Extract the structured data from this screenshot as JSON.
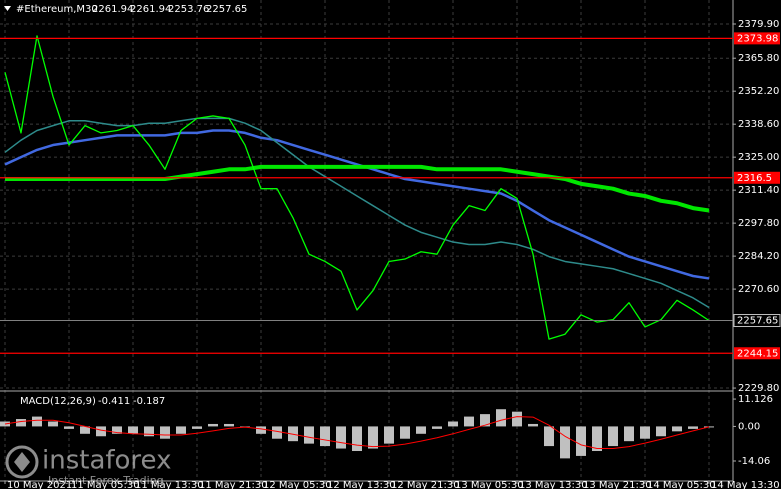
{
  "header": {
    "open": 2261.94,
    "high": 2261.94,
    "low": 2253.76
  },
  "watermark": {
    "brand": "instaforex",
    "tagline": "Instant Forex Trading"
  },
  "chart_data": [
    {
      "type": "line",
      "title": "#Ethereum,M30",
      "categories": [
        "10 May 2021",
        null,
        null,
        null,
        "11 May 05:30",
        null,
        null,
        null,
        "11 May 13:30",
        null,
        null,
        null,
        "11 May 21:30",
        null,
        null,
        null,
        "12 May 05:30",
        null,
        null,
        null,
        "12 May 13:30",
        null,
        null,
        null,
        "12 May 21:30",
        null,
        null,
        null,
        "13 May 05:30",
        null,
        null,
        null,
        "13 May 13:30",
        null,
        null,
        null,
        "13 May 21:30",
        null,
        null,
        null,
        "14 May 05:30",
        null,
        null,
        null,
        "14 May 13:30"
      ],
      "series": [
        {
          "color": "#4169e1",
          "width": 2.5,
          "values": [
            2322,
            2325,
            2328,
            2330,
            2331,
            2332,
            2333,
            2334,
            2334,
            2334,
            2334,
            2335,
            2335,
            2336,
            2336,
            2335,
            2333,
            2332,
            2330,
            2328,
            2326,
            2324,
            2322,
            2320,
            2318,
            2316,
            2315,
            2314,
            2313,
            2312,
            2311,
            2310,
            2307,
            2303,
            2299,
            2296,
            2293,
            2290,
            2287,
            2284,
            2282,
            2280,
            2278,
            2276,
            2275
          ]
        },
        {
          "color": "#2e8b8b",
          "width": 1.5,
          "values": [
            2327,
            2332,
            2336,
            2338,
            2340,
            2340,
            2339,
            2338,
            2338,
            2339,
            2339,
            2340,
            2341,
            2341,
            2341,
            2339,
            2336,
            2331,
            2326,
            2321,
            2317,
            2313,
            2309,
            2305,
            2301,
            2297,
            2294,
            2292,
            2290,
            2289,
            2289,
            2290,
            2289,
            2287,
            2284,
            2282,
            2281,
            2280,
            2279,
            2277,
            2275,
            2273,
            2270,
            2267,
            2263
          ]
        },
        {
          "color": "#00e600",
          "width": 4,
          "values": [
            2316,
            2316,
            2316,
            2316,
            2316,
            2316,
            2316,
            2316,
            2316,
            2316,
            2316,
            2317,
            2318,
            2319,
            2320,
            2320,
            2321,
            2321,
            2321,
            2321,
            2321,
            2321,
            2321,
            2321,
            2321,
            2321,
            2321,
            2320,
            2320,
            2320,
            2320,
            2320,
            2319,
            2318,
            2317,
            2316,
            2314,
            2313,
            2312,
            2310,
            2309,
            2307,
            2306,
            2304,
            2303
          ]
        },
        {
          "color": "#00ff00",
          "width": 1.3,
          "values": [
            2360,
            2335,
            2375,
            2350,
            2330,
            2338,
            2335,
            2336,
            2338,
            2330,
            2320,
            2336,
            2341,
            2342,
            2341,
            2330,
            2312,
            2312,
            2300,
            2285,
            2282,
            2278,
            2262,
            2270,
            2282,
            2283,
            2286,
            2285,
            2297,
            2305,
            2303,
            2312,
            2308,
            2285,
            2250,
            2252,
            2260,
            2257,
            2258,
            2265,
            2255,
            2258,
            2266,
            2262,
            2257.65
          ]
        }
      ],
      "levels": [
        {
          "value": 2373.98,
          "color": "#ff0000"
        },
        {
          "value": 2316.5,
          "color": "#ff0000"
        },
        {
          "value": 2244.15,
          "color": "#ff0000"
        }
      ],
      "ylim": [
        2229.0,
        2389.8
      ],
      "yticks": [
        {
          "value": 2379.9,
          "label": "2379.90"
        },
        {
          "value": 2365.8,
          "label": "2365.80"
        },
        {
          "value": 2352.2,
          "label": "2352.20"
        },
        {
          "value": 2338.6,
          "label": "2338.60"
        },
        {
          "value": 2325,
          "label": "2325.00"
        },
        {
          "value": 2311.4,
          "label": "2311.40"
        },
        {
          "value": 2297.8,
          "label": "2297.80"
        },
        {
          "value": 2284.2,
          "label": "2284.20"
        },
        {
          "value": 2270.6,
          "label": "2270.60"
        },
        {
          "value": 2229.8,
          "label": "2229.80"
        }
      ],
      "grid": true
    },
    {
      "type": "bar",
      "title": "MACD(12,26,9)",
      "series": [
        {
          "type": "bar",
          "color": "#c0c0c0",
          "values": [
            2,
            3,
            4,
            2,
            -1,
            -3,
            -4,
            -3,
            -3,
            -4,
            -5,
            -3,
            -1,
            1,
            1,
            0,
            -3,
            -5,
            -6,
            -7,
            -8,
            -9,
            -10,
            -9,
            -7,
            -5,
            -3,
            -1,
            2,
            4,
            5,
            7,
            6,
            1,
            -8,
            -13,
            -12,
            -10,
            -8,
            -6,
            -5,
            -4,
            -2,
            -1,
            -0.411
          ]
        },
        {
          "type": "line",
          "color": "#ff0000",
          "width": 1,
          "values": [
            1,
            2,
            2.5,
            2.5,
            1.5,
            0,
            -1.5,
            -2.5,
            -3,
            -3.2,
            -3.5,
            -3.5,
            -2.8,
            -1.8,
            -0.8,
            -0.3,
            -1,
            -2,
            -3.2,
            -4.4,
            -5.5,
            -6.6,
            -7.6,
            -8.2,
            -8,
            -7.2,
            -6,
            -4.6,
            -3,
            -1.2,
            0.5,
            2.5,
            4,
            3.8,
            0.5,
            -4,
            -7.5,
            -9,
            -9,
            -8.2,
            -6.8,
            -5.2,
            -3.5,
            -1.8,
            -0.187
          ]
        }
      ],
      "ylim": [
        -22.2,
        14.0
      ],
      "yticks": [
        11.126,
        {
          "value": 0,
          "label": "0.00"
        },
        -14.06
      ]
    }
  ]
}
